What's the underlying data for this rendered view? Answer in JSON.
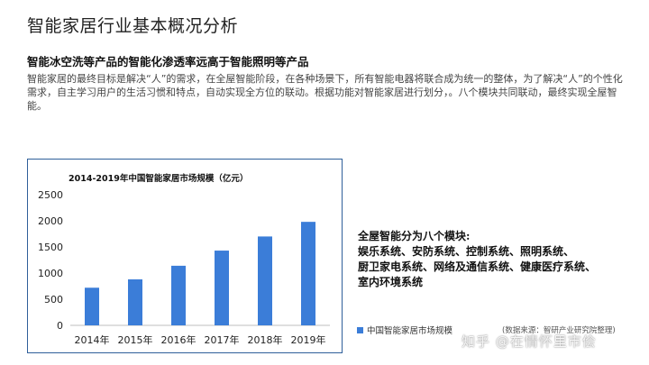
{
  "slide": {
    "title": "智能家居行业基本概况分析",
    "subtitle": "智能冰空洗等产品的智能化渗透率远高于智能照明等产品",
    "intro": "智能家居的最终目标是解决“人”的需求，在全屋智能阶段，在各种场景下，所有智能电器将联合成为统一的整体，为了解决“人”的个性化需求，自主学习用户的生活习惯和特点，自动实现全方位的联动。根据功能对智能家居进行划分，。八个模块共同联动，最终实现全屋智能。"
  },
  "modules": {
    "heading": "全屋智能分为八个模块:",
    "lines": [
      "娱乐系统、安防系统、控制系统、照明系统、",
      "厨卫家电系统、网络及通信系统、健康医疗系统、",
      "室内环境系统"
    ]
  },
  "source_text": "(数据来源：智研产业研究院整理)",
  "watermark": "知乎 @在情怀里市侩",
  "colors": {
    "bar": "#3b7dd8",
    "frame": "#2f5f9a"
  },
  "chart_data": {
    "type": "bar",
    "title": "2014-2019年中国智能家居市场规模（亿元）",
    "categories": [
      "2014年",
      "2015年",
      "2016年",
      "2017年",
      "2018年",
      "2019年"
    ],
    "series": [
      {
        "name": "中国智能家居市场规模",
        "values": [
          720,
          880,
          1140,
          1430,
          1700,
          1980
        ]
      }
    ],
    "ylim": [
      0,
      2500
    ],
    "yticks": [
      0,
      500,
      1000,
      1500,
      2000,
      2500
    ],
    "grid": false,
    "legend": "bottom-right"
  }
}
